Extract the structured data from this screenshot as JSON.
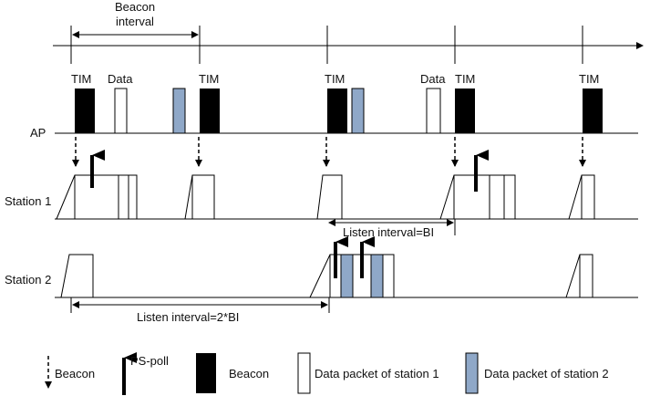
{
  "labels": {
    "beacon_interval_line1": "Beacon",
    "beacon_interval_line2": "interval",
    "ap": "AP",
    "station1": "Station 1",
    "station2": "Station 2",
    "tim": "TIM",
    "data": "Data",
    "listen_interval_bi": "Listen interval=BI",
    "listen_interval_2bi": "Listen interval=2*BI"
  },
  "legend": {
    "beacon_arrow": "Beacon",
    "ps_poll": "PS-poll",
    "beacon_block": "Beacon",
    "data_station1": "Data packet of station 1",
    "data_station2": "Data packet of station 2"
  },
  "colors": {
    "beacon_fill": "#000000",
    "station1_packet_fill": "#ffffff",
    "station2_packet_fill": "#8fa8c8",
    "line": "#000000"
  }
}
